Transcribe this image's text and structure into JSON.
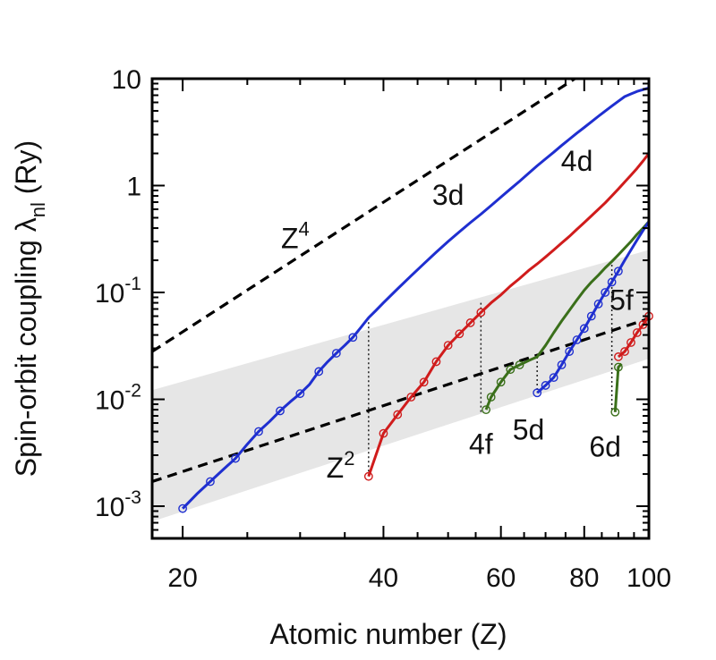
{
  "chart_data": {
    "type": "line",
    "xscale": "log",
    "yscale": "log",
    "xlim": [
      18,
      100
    ],
    "ylim": [
      0.0005,
      10
    ],
    "xlabel": "Atomic number (Z)",
    "ylabel": {
      "main": "Spin-orbit coupling λ",
      "sub": "nl",
      "unit": " (Ry)"
    },
    "x_ticks": [
      {
        "value": 20,
        "label": "20"
      },
      {
        "value": 40,
        "label": "40"
      },
      {
        "value": 60,
        "label": "60"
      },
      {
        "value": 80,
        "label": "80"
      },
      {
        "value": 100,
        "label": "100"
      }
    ],
    "y_ticks": [
      {
        "value": 0.001,
        "base": "10",
        "exp": "-3"
      },
      {
        "value": 0.01,
        "base": "10",
        "exp": "-2"
      },
      {
        "value": 0.1,
        "base": "10",
        "exp": "-1"
      },
      {
        "value": 1,
        "base": "1",
        "exp": ""
      },
      {
        "value": 10,
        "base": "10",
        "exp": ""
      }
    ],
    "band": {
      "color": "#e6e6e6",
      "lower": [
        [
          18,
          0.00072
        ],
        [
          100,
          0.024
        ]
      ],
      "upper": [
        [
          18,
          0.0122
        ],
        [
          100,
          0.25
        ]
      ]
    },
    "series": [
      {
        "color": "#1f2fd0",
        "x": [
          20,
          21,
          22,
          23,
          24,
          25,
          26,
          27,
          28,
          29,
          30,
          31,
          32,
          33,
          34,
          35,
          36,
          37,
          38,
          39,
          40,
          42,
          44,
          46,
          48,
          50,
          52,
          54,
          56,
          58,
          60,
          62,
          64,
          66,
          68,
          70,
          72,
          74,
          76,
          78,
          80,
          82,
          84,
          86,
          88,
          90,
          92,
          94,
          96,
          98,
          100
        ],
        "y": [
          0.00095,
          0.0013,
          0.0017,
          0.0022,
          0.0028,
          0.0038,
          0.005,
          0.0062,
          0.0078,
          0.0095,
          0.0113,
          0.0138,
          0.0182,
          0.0225,
          0.027,
          0.032,
          0.038,
          0.047,
          0.058,
          0.068,
          0.08,
          0.108,
          0.143,
          0.186,
          0.238,
          0.3,
          0.37,
          0.45,
          0.54,
          0.65,
          0.78,
          0.93,
          1.1,
          1.3,
          1.53,
          1.78,
          2.05,
          2.37,
          2.72,
          3.1,
          3.5,
          3.95,
          4.45,
          4.98,
          5.55,
          6.15,
          6.8,
          7.2,
          7.6,
          7.9,
          8.2
        ],
        "markers_x": [
          20,
          22,
          24,
          26,
          28,
          30,
          32,
          34,
          36
        ]
      },
      {
        "color": "#d01c1c",
        "x": [
          38,
          40,
          42,
          44,
          46,
          48,
          50,
          52,
          54,
          56,
          58,
          60,
          62,
          64,
          66,
          68,
          70,
          72,
          74,
          76,
          78,
          80,
          82,
          84,
          86,
          88,
          90,
          92,
          94,
          96,
          98,
          100
        ],
        "y": [
          0.0019,
          0.0048,
          0.0072,
          0.0105,
          0.0145,
          0.0225,
          0.032,
          0.041,
          0.052,
          0.065,
          0.08,
          0.095,
          0.115,
          0.135,
          0.16,
          0.185,
          0.215,
          0.25,
          0.29,
          0.335,
          0.39,
          0.45,
          0.52,
          0.6,
          0.69,
          0.8,
          0.93,
          1.08,
          1.25,
          1.45,
          1.7,
          2.0
        ],
        "markers_x": [
          38,
          40,
          42,
          44,
          46,
          48,
          50,
          52,
          54,
          56
        ]
      },
      {
        "color": "#3a6f1a",
        "x": [
          57,
          58,
          60,
          62,
          64,
          66,
          68,
          70,
          72,
          74,
          76,
          78,
          80,
          82,
          84,
          86,
          88,
          90,
          92,
          94,
          96,
          98,
          100
        ],
        "y": [
          0.008,
          0.0105,
          0.0145,
          0.019,
          0.021,
          0.023,
          0.025,
          0.032,
          0.042,
          0.054,
          0.068,
          0.085,
          0.105,
          0.125,
          0.145,
          0.17,
          0.195,
          0.225,
          0.26,
          0.3,
          0.35,
          0.4,
          0.46
        ],
        "markers_x": [
          57,
          58,
          60,
          62,
          64
        ]
      },
      {
        "color": "#1f2fd0",
        "x": [
          68,
          70,
          72,
          74,
          76,
          78,
          80,
          82,
          84,
          86,
          88,
          90,
          92,
          94,
          96,
          98,
          100
        ],
        "y": [
          0.0115,
          0.0135,
          0.016,
          0.021,
          0.028,
          0.036,
          0.046,
          0.06,
          0.078,
          0.1,
          0.125,
          0.158,
          0.2,
          0.25,
          0.31,
          0.38,
          0.46
        ],
        "markers_x": [
          68,
          70,
          72,
          74,
          76,
          78,
          80,
          82,
          84,
          86,
          88,
          90
        ]
      },
      {
        "color": "#3a6f1a",
        "x": [
          89,
          90,
          91
        ],
        "y": [
          0.0076,
          0.02,
          0.0215
        ],
        "markers_x": [
          89,
          90
        ]
      },
      {
        "color": "#d01c1c",
        "x": [
          90,
          92,
          94,
          96,
          98,
          100
        ],
        "y": [
          0.025,
          0.028,
          0.034,
          0.042,
          0.05,
          0.06
        ],
        "markers_x": [
          90,
          92,
          94,
          96,
          98,
          100
        ]
      }
    ],
    "reference_lines": [
      {
        "name": "Z4",
        "base": "Z",
        "exp": "4",
        "color": "#000000",
        "dashed": true,
        "points": [
          [
            18,
            0.028
          ],
          [
            100,
            28
          ]
        ]
      },
      {
        "name": "Z2",
        "base": "Z",
        "exp": "2",
        "color": "#000000",
        "dashed": true,
        "points": [
          [
            18,
            0.0017
          ],
          [
            100,
            0.057
          ]
        ]
      }
    ],
    "dotted_verticals": [
      {
        "x": 38,
        "y_top": 0.058,
        "y_bottom": 0.0019
      },
      {
        "x": 56,
        "y_top": 0.08,
        "y_bottom": 0.0076
      },
      {
        "x": 68,
        "y_top": 0.025,
        "y_bottom": 0.0115
      },
      {
        "x": 88,
        "y_top": 0.2,
        "y_bottom": 0.0076
      }
    ],
    "annotations": [
      {
        "text": "3d",
        "x": 50,
        "y": 0.82
      },
      {
        "text": "4d",
        "x": 78,
        "y": 1.7
      },
      {
        "text": "5f",
        "x": 91,
        "y": 0.085
      },
      {
        "text": "4f",
        "x": 56,
        "y": 0.0038
      },
      {
        "text": "5d",
        "x": 66,
        "y": 0.0052
      },
      {
        "text": "6d",
        "x": 86,
        "y": 0.0036
      },
      {
        "text": "Z",
        "sup": "4",
        "x": 29.5,
        "y": 0.32
      },
      {
        "text": "Z",
        "sup": "2",
        "x": 34.5,
        "y": 0.0023
      }
    ]
  }
}
